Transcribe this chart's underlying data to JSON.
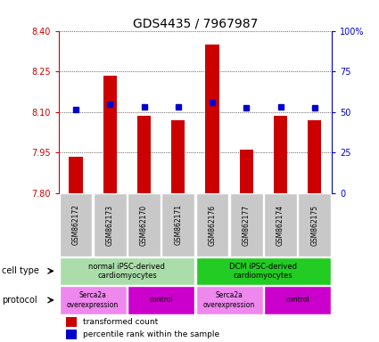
{
  "title": "GDS4435 / 7967987",
  "samples": [
    "GSM862172",
    "GSM862173",
    "GSM862170",
    "GSM862171",
    "GSM862176",
    "GSM862177",
    "GSM862174",
    "GSM862175"
  ],
  "bar_values": [
    7.935,
    8.235,
    8.085,
    8.07,
    8.35,
    7.96,
    8.085,
    8.07
  ],
  "bar_base": 7.8,
  "blue_values": [
    8.11,
    8.13,
    8.12,
    8.12,
    8.135,
    8.115,
    8.12,
    8.115
  ],
  "ylim": [
    7.8,
    8.4
  ],
  "yticks": [
    7.8,
    7.95,
    8.1,
    8.25,
    8.4
  ],
  "right_yticks": [
    0,
    25,
    50,
    75,
    100
  ],
  "bar_color": "#cc0000",
  "blue_color": "#0000cc",
  "title_fontsize": 10,
  "cell_type_groups": [
    {
      "label": "normal iPSC-derived\ncardiomyocytes",
      "start": 0,
      "end": 3,
      "color": "#aaddaa"
    },
    {
      "label": "DCM iPSC-derived\ncardiomyocytes",
      "start": 4,
      "end": 7,
      "color": "#22cc22"
    }
  ],
  "protocol_groups": [
    {
      "label": "Serca2a\noverexpression",
      "start": 0,
      "end": 1,
      "color": "#ee88ee"
    },
    {
      "label": "control",
      "start": 2,
      "end": 3,
      "color": "#cc00cc"
    },
    {
      "label": "Serca2a\noverexpression",
      "start": 4,
      "end": 5,
      "color": "#ee88ee"
    },
    {
      "label": "control",
      "start": 6,
      "end": 7,
      "color": "#cc00cc"
    }
  ],
  "legend_items": [
    {
      "label": "transformed count",
      "color": "#cc0000"
    },
    {
      "label": "percentile rank within the sample",
      "color": "#0000cc"
    }
  ],
  "cell_type_label": "cell type",
  "protocol_label": "protocol",
  "sample_box_color": "#c8c8c8",
  "bar_width": 0.4
}
